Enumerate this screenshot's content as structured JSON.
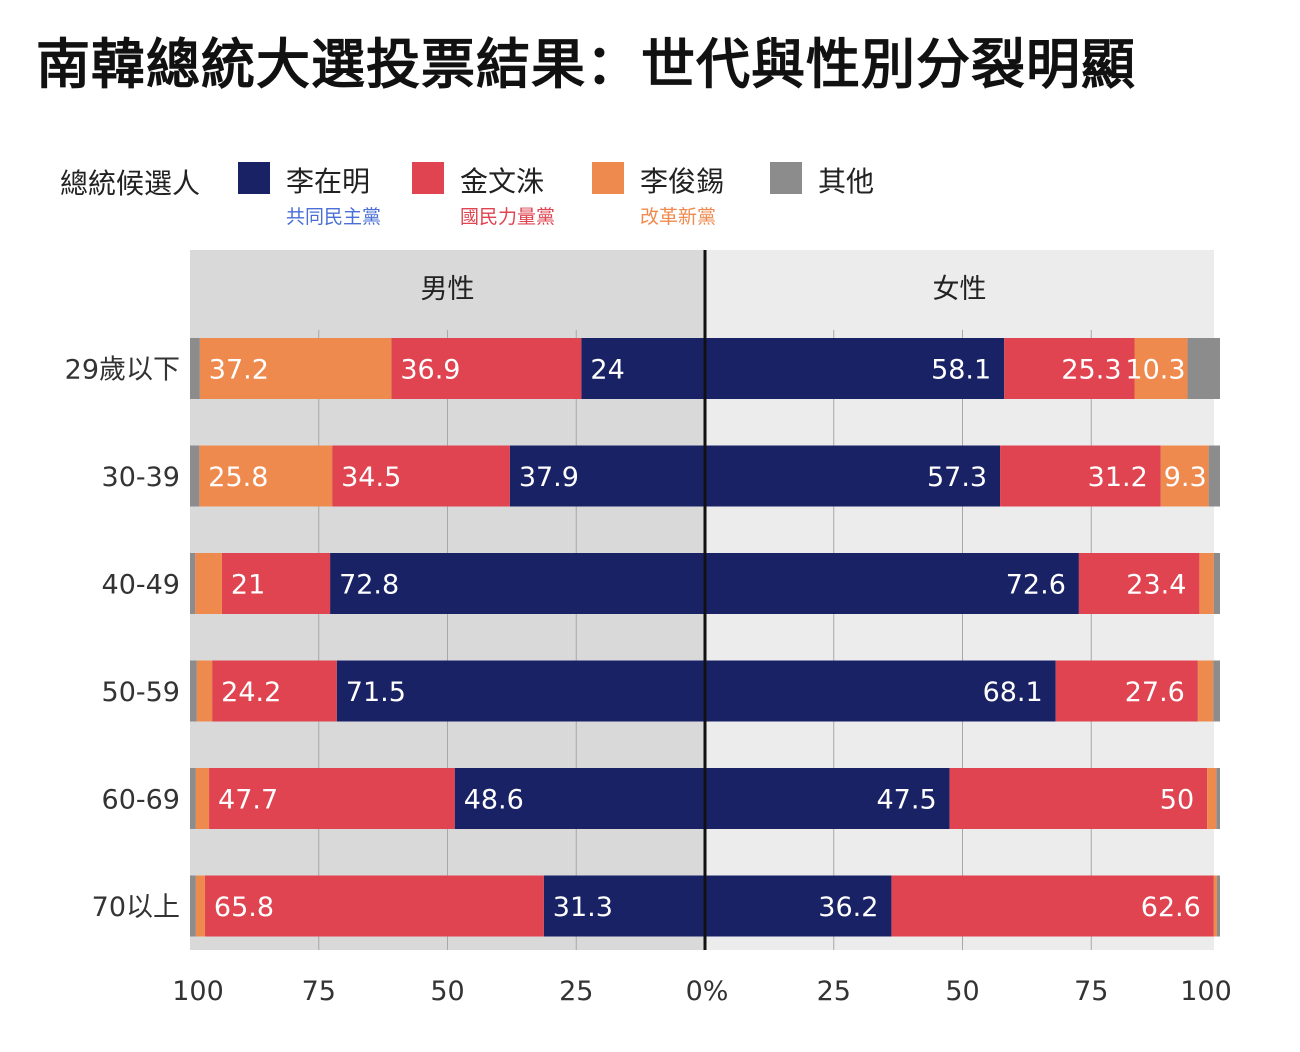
{
  "title": "南韓總統大選投票結果：世代與性別分裂明顯",
  "legend": {
    "title": "總統候選人",
    "items": [
      {
        "name": "李在明",
        "party": "共同民主黨",
        "color": "#1a2266",
        "party_color": "#4a6fd6"
      },
      {
        "name": "金文洙",
        "party": "國民力量黨",
        "color": "#df4450",
        "party_color": "#df4450"
      },
      {
        "name": "李俊錫",
        "party": "改革新黨",
        "color": "#ef8a4e",
        "party_color": "#ef8a4e"
      },
      {
        "name": "其他",
        "party": "",
        "color": "#8c8c8c",
        "party_color": ""
      }
    ]
  },
  "chart_data": {
    "type": "bar",
    "orientation": "horizontal",
    "stacked": true,
    "panels": [
      {
        "name": "男性",
        "direction": "leftward"
      },
      {
        "name": "女性",
        "direction": "rightward"
      }
    ],
    "categories": [
      "29歲以下",
      "30-39",
      "40-49",
      "50-59",
      "60-69",
      "70以上"
    ],
    "series": [
      {
        "name": "李在明",
        "color": "#1a2266",
        "male": [
          24,
          37.9,
          72.8,
          71.5,
          48.6,
          31.3
        ],
        "female": [
          58.1,
          57.3,
          72.6,
          68.1,
          47.5,
          36.2
        ]
      },
      {
        "name": "金文洙",
        "color": "#df4450",
        "male": [
          36.9,
          34.5,
          21,
          24.2,
          47.7,
          65.8
        ],
        "female": [
          25.3,
          31.2,
          23.4,
          27.6,
          50,
          62.6
        ]
      },
      {
        "name": "李俊錫",
        "color": "#ef8a4e",
        "male": [
          37.2,
          25.8,
          5.2,
          3,
          2.6,
          1.8
        ],
        "female": [
          10.3,
          9.3,
          2.8,
          3,
          1.8,
          0.6
        ]
      },
      {
        "name": "其他",
        "color": "#8c8c8c",
        "male": [
          1.9,
          1.8,
          1,
          1.3,
          1.1,
          1.1
        ],
        "female": [
          6.3,
          2.2,
          1.2,
          1.3,
          0.7,
          0.6
        ]
      }
    ],
    "labeled": {
      "male": [
        [
          true,
          true,
          true
        ],
        [
          true,
          true,
          true
        ],
        [
          true,
          true,
          false
        ],
        [
          true,
          true,
          false
        ],
        [
          true,
          true,
          false
        ],
        [
          true,
          true,
          false
        ]
      ],
      "female": [
        [
          true,
          true,
          true
        ],
        [
          true,
          true,
          true
        ],
        [
          true,
          true,
          false
        ],
        [
          true,
          true,
          false
        ],
        [
          true,
          true,
          false
        ],
        [
          true,
          true,
          false
        ]
      ]
    },
    "xlim": [
      0,
      100
    ],
    "ticks": {
      "male": [
        "100",
        "75",
        "50",
        "25"
      ],
      "female": [
        "25",
        "50",
        "75",
        "100"
      ],
      "center": "0%"
    },
    "tick_values": [
      100,
      75,
      50,
      25
    ],
    "grid": true
  }
}
